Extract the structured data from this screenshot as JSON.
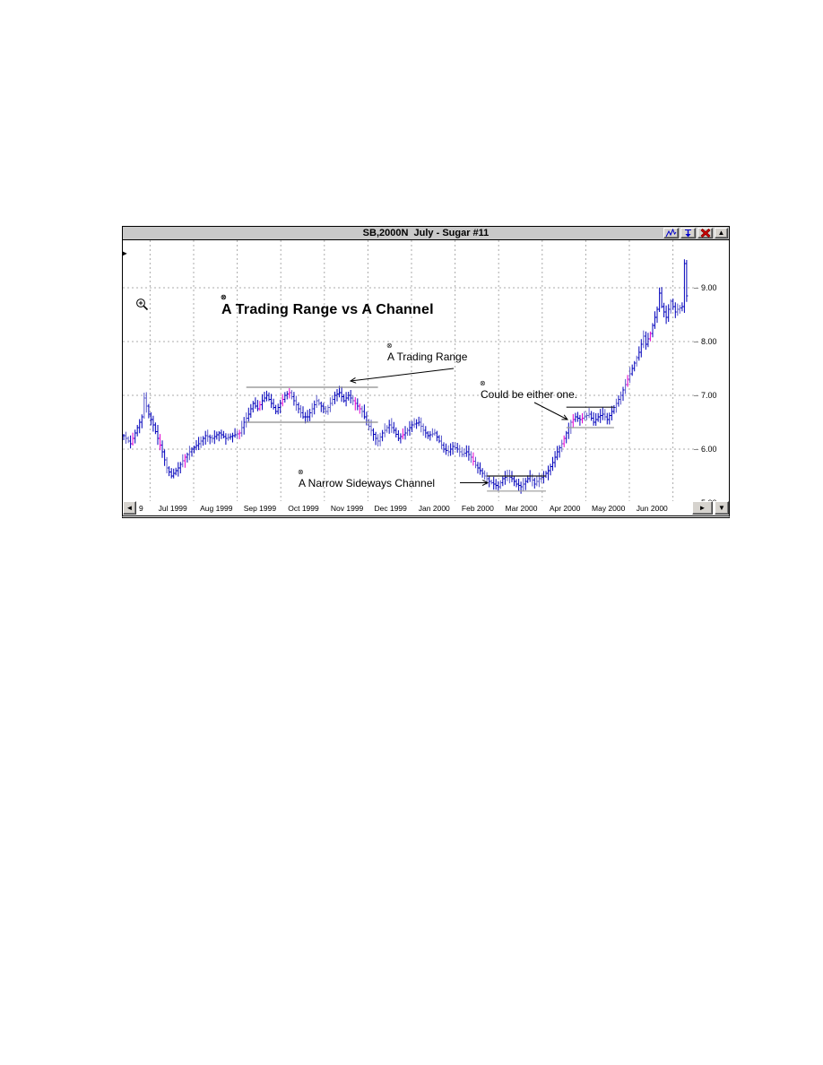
{
  "window": {
    "title": "SB,2000N  July - Sugar #11",
    "titlebar_buttons": [
      {
        "name": "line-chart-button",
        "icon": "line-chart-icon"
      },
      {
        "name": "insert-tool-button",
        "icon": "down-arrow-icon"
      },
      {
        "name": "delete-button",
        "icon": "red-x-icon"
      },
      {
        "name": "collapse-up-button",
        "icon": "up-triangle-icon",
        "glyph": "▲"
      }
    ],
    "scroll_buttons": {
      "left": "◄",
      "right": "►",
      "down": "▼"
    }
  },
  "colors": {
    "bar_main": "#0000bb",
    "bar_alt": "#5c5ccc",
    "bar_down": "#e000d0",
    "gridline": "#ababab",
    "channel_gray": "#8a8a8a",
    "channel_dark": "#1a1a1a",
    "titlebar_bg": "#c9c9c9"
  },
  "chart_data": {
    "type": "ohlc-bar",
    "symbol": "SB,2000N",
    "description": "July - Sugar #11",
    "title": "A Trading Range vs A Channel",
    "x_tick_labels": [
      "Jul 1999",
      "Aug 1999",
      "Sep 1999",
      "Oct 1999",
      "Nov 1999",
      "Dec 1999",
      "Jan 2000",
      "Feb 2000",
      "Mar 2000",
      "Apr 2000",
      "May 2000",
      "Jun 2000"
    ],
    "x_leftover_label": "9",
    "y_tick_labels": [
      "9.00",
      "8.00",
      "7.00",
      "6.00",
      "5.00"
    ],
    "y_tick_values": [
      9,
      8,
      7,
      6,
      5
    ],
    "ylim_visible": [
      5.05,
      9.9
    ],
    "grid": true,
    "legend": "none",
    "bar_count": 249,
    "price_path_daily_close": [
      [
        0,
        6.25
      ],
      [
        3,
        6.1
      ],
      [
        5,
        6.3
      ],
      [
        8,
        6.6
      ],
      [
        9,
        6.95
      ],
      [
        11,
        6.65
      ],
      [
        13,
        6.45
      ],
      [
        15,
        6.2
      ],
      [
        17,
        5.95
      ],
      [
        19,
        5.65
      ],
      [
        21,
        5.5
      ],
      [
        24,
        5.65
      ],
      [
        27,
        5.85
      ],
      [
        30,
        6.0
      ],
      [
        33,
        6.1
      ],
      [
        36,
        6.25
      ],
      [
        39,
        6.2
      ],
      [
        42,
        6.3
      ],
      [
        45,
        6.2
      ],
      [
        48,
        6.25
      ],
      [
        51,
        6.3
      ],
      [
        53,
        6.5
      ],
      [
        55,
        6.65
      ],
      [
        57,
        6.85
      ],
      [
        59,
        6.75
      ],
      [
        61,
        6.9
      ],
      [
        63,
        7.0
      ],
      [
        65,
        6.85
      ],
      [
        67,
        6.7
      ],
      [
        69,
        6.85
      ],
      [
        71,
        7.0
      ],
      [
        73,
        7.05
      ],
      [
        75,
        6.9
      ],
      [
        77,
        6.75
      ],
      [
        79,
        6.6
      ],
      [
        81,
        6.6
      ],
      [
        83,
        6.75
      ],
      [
        85,
        6.9
      ],
      [
        87,
        6.8
      ],
      [
        89,
        6.7
      ],
      [
        91,
        6.85
      ],
      [
        93,
        7.0
      ],
      [
        95,
        7.05
      ],
      [
        97,
        6.9
      ],
      [
        99,
        7.0
      ],
      [
        101,
        6.9
      ],
      [
        103,
        6.8
      ],
      [
        105,
        6.7
      ],
      [
        107,
        6.5
      ],
      [
        109,
        6.35
      ],
      [
        111,
        6.2
      ],
      [
        112,
        6.15
      ],
      [
        114,
        6.3
      ],
      [
        117,
        6.45
      ],
      [
        119,
        6.35
      ],
      [
        121,
        6.2
      ],
      [
        124,
        6.3
      ],
      [
        127,
        6.45
      ],
      [
        130,
        6.5
      ],
      [
        132,
        6.35
      ],
      [
        134,
        6.25
      ],
      [
        137,
        6.3
      ],
      [
        139,
        6.15
      ],
      [
        141,
        6.0
      ],
      [
        143,
        5.95
      ],
      [
        145,
        6.05
      ],
      [
        147,
        6.0
      ],
      [
        149,
        5.9
      ],
      [
        151,
        5.95
      ],
      [
        153,
        5.85
      ],
      [
        155,
        5.7
      ],
      [
        157,
        5.6
      ],
      [
        159,
        5.5
      ],
      [
        161,
        5.4
      ],
      [
        163,
        5.35
      ],
      [
        165,
        5.3
      ],
      [
        167,
        5.45
      ],
      [
        169,
        5.5
      ],
      [
        171,
        5.45
      ],
      [
        173,
        5.35
      ],
      [
        175,
        5.3
      ],
      [
        177,
        5.4
      ],
      [
        179,
        5.5
      ],
      [
        181,
        5.35
      ],
      [
        183,
        5.45
      ],
      [
        185,
        5.5
      ],
      [
        187,
        5.6
      ],
      [
        189,
        5.75
      ],
      [
        191,
        5.95
      ],
      [
        193,
        6.1
      ],
      [
        195,
        6.3
      ],
      [
        197,
        6.5
      ],
      [
        199,
        6.6
      ],
      [
        201,
        6.55
      ],
      [
        203,
        6.6
      ],
      [
        205,
        6.65
      ],
      [
        207,
        6.5
      ],
      [
        209,
        6.6
      ],
      [
        211,
        6.65
      ],
      [
        213,
        6.55
      ],
      [
        215,
        6.7
      ],
      [
        217,
        6.85
      ],
      [
        219,
        7.0
      ],
      [
        221,
        7.2
      ],
      [
        223,
        7.4
      ],
      [
        225,
        7.6
      ],
      [
        227,
        7.8
      ],
      [
        228,
        7.95
      ],
      [
        229,
        8.1
      ],
      [
        230,
        7.95
      ],
      [
        232,
        8.15
      ],
      [
        233,
        8.3
      ],
      [
        235,
        8.6
      ],
      [
        236,
        8.9
      ],
      [
        237,
        8.65
      ],
      [
        239,
        8.45
      ],
      [
        241,
        8.75
      ],
      [
        243,
        8.55
      ],
      [
        244,
        8.6
      ],
      [
        246,
        8.65
      ],
      [
        247,
        9.45
      ],
      [
        248,
        8.85
      ]
    ],
    "channels": [
      {
        "name": "trading-range",
        "top_price": 7.15,
        "bottom_price": 6.5,
        "from_day": 54,
        "to_day": 112,
        "top_color": "#8a8a8a",
        "bottom_color": "#8a8a8a"
      },
      {
        "name": "narrow-sideways-channel",
        "top_price": 5.5,
        "bottom_price": 5.22,
        "from_day": 160,
        "to_day": 186,
        "top_color": "#1a1a1a",
        "bottom_color": "#9a9a9a"
      },
      {
        "name": "could-be-either",
        "top_price": 6.78,
        "bottom_price": 6.4,
        "from_day": 195,
        "to_day": 216,
        "top_color": "#1a1a1a",
        "bottom_color": "#9a9a9a"
      }
    ],
    "annotations": [
      {
        "text": "A Trading Range vs A Channel"
      },
      {
        "text": "A Trading Range"
      },
      {
        "text": "Could be either one."
      },
      {
        "text": "A Narrow Sideways Channel"
      }
    ],
    "annotation_handle_glyph": "⊗"
  }
}
